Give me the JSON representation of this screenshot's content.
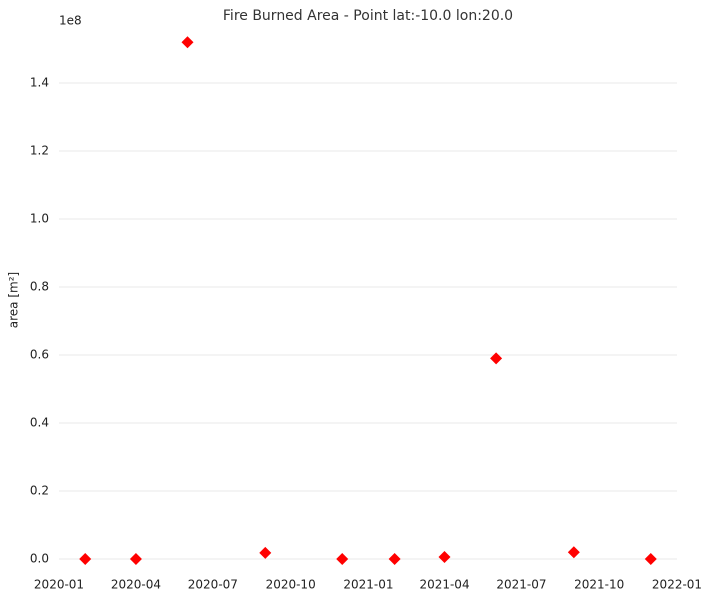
{
  "chart_data": {
    "type": "scatter",
    "title": "Fire Burned Area - Point lat:-10.0 lon:20.0",
    "y_label": "area [m²]",
    "y_offset_label": "1e8",
    "x": [
      "2020-02",
      "2020-04",
      "2020-06",
      "2020-09",
      "2020-12",
      "2021-02",
      "2021-04",
      "2021-06",
      "2021-09",
      "2021-12"
    ],
    "series": [
      {
        "color": "#ff0000",
        "marker": "diamond",
        "values": [
          0,
          0,
          1.52,
          0.018,
          0,
          0,
          0.006,
          0.59,
          0.02,
          0
        ]
      }
    ],
    "xlim": [
      "2020-01",
      "2022-01"
    ],
    "xticks": [
      "2020-01",
      "2020-04",
      "2020-07",
      "2020-10",
      "2021-01",
      "2021-04",
      "2021-07",
      "2021-10",
      "2022-01"
    ],
    "ylim": [
      -0.04,
      1.6
    ],
    "yticks": [
      {
        "value": 0,
        "label": "0.0"
      },
      {
        "value": 0.2,
        "label": "0.2"
      },
      {
        "value": 0.4,
        "label": "0.4"
      },
      {
        "value": 0.6,
        "label": "0.6"
      },
      {
        "value": 0.8,
        "label": "0.8"
      },
      {
        "value": 1,
        "label": "1.0"
      },
      {
        "value": 1.2,
        "label": "1.2"
      },
      {
        "value": 1.4,
        "label": "1.4"
      }
    ],
    "grid": true
  }
}
